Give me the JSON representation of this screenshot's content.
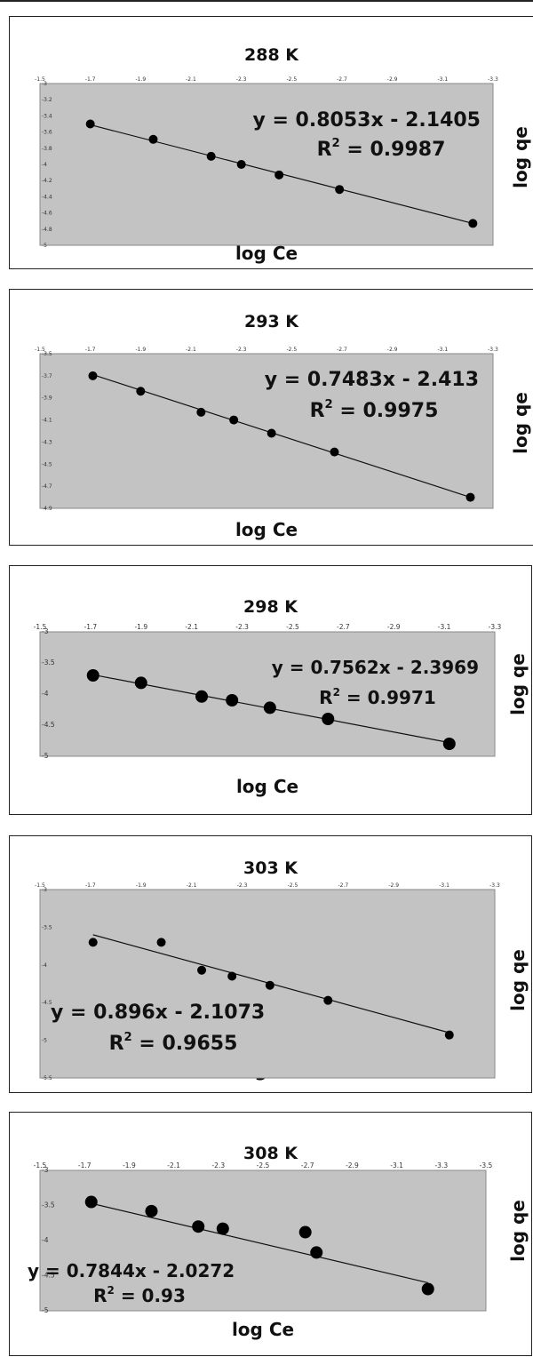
{
  "chart_data": [
    {
      "type": "scatter",
      "title": "288 K",
      "xlabel": "log Ce",
      "ylabel": "log qe",
      "xlim": [
        -1.5,
        -3.3
      ],
      "ylim": [
        -3,
        -5
      ],
      "xticks": [
        "-1.5",
        "-1.7",
        "-1.9",
        "-2.1",
        "-2.3",
        "-2.5",
        "-2.7",
        "-2.9",
        "-3.1",
        "-3.3"
      ],
      "yticks": [
        "-3",
        "-3.2",
        "-3.4",
        "-3.6",
        "-3.8",
        "-4",
        "-4.2",
        "-4.4",
        "-4.6",
        "-4.8",
        "-5"
      ],
      "points": [
        [
          -1.7,
          -3.5
        ],
        [
          -1.95,
          -3.69
        ],
        [
          -2.18,
          -3.9
        ],
        [
          -2.3,
          -4.0
        ],
        [
          -2.45,
          -4.13
        ],
        [
          -2.69,
          -4.31
        ],
        [
          -3.22,
          -4.73
        ]
      ],
      "trendline": {
        "x": [
          -1.7,
          -3.22
        ],
        "y": [
          -3.51,
          -4.73
        ]
      },
      "equation": "y = 0.8053x - 2.1405",
      "r2_prefix": "R",
      "r2_sup": "2",
      "r2_value": " = 0.9987"
    },
    {
      "type": "scatter",
      "title": "293 K",
      "xlabel": "log Ce",
      "ylabel": "log qe",
      "xlim": [
        -1.5,
        -3.3
      ],
      "ylim": [
        -3.5,
        -4.9
      ],
      "xticks": [
        "-1.5",
        "-1.7",
        "-1.9",
        "-2.1",
        "-2.3",
        "-2.5",
        "-2.7",
        "-2.9",
        "-3.1",
        "-3.3"
      ],
      "yticks": [
        "-3.5",
        "-3.7",
        "-3.9",
        "-4.1",
        "-4.3",
        "-4.5",
        "-4.7",
        "-4.9"
      ],
      "points": [
        [
          -1.71,
          -3.7
        ],
        [
          -1.9,
          -3.84
        ],
        [
          -2.14,
          -4.03
        ],
        [
          -2.27,
          -4.1
        ],
        [
          -2.42,
          -4.22
        ],
        [
          -2.67,
          -4.39
        ],
        [
          -3.21,
          -4.8
        ]
      ],
      "trendline": {
        "x": [
          -1.71,
          -3.21
        ],
        "y": [
          -3.69,
          -4.8
        ]
      },
      "equation": "y = 0.7483x - 2.413",
      "r2_prefix": "R",
      "r2_sup": "2",
      "r2_value": " = 0.9975"
    },
    {
      "type": "scatter",
      "title": "298 K",
      "xlabel": "log Ce",
      "ylabel": "log qe",
      "xlim": [
        -1.5,
        -3.3
      ],
      "ylim": [
        -3,
        -5
      ],
      "xticks": [
        "-1.5",
        "-1.7",
        "-1.9",
        "-2.1",
        "-2.3",
        "-2.5",
        "-2.7",
        "-2.9",
        "-3.1",
        "-3.3"
      ],
      "yticks": [
        "-3",
        "-3.5",
        "-4",
        "-4.5",
        "-5"
      ],
      "points": [
        [
          -1.71,
          -3.7
        ],
        [
          -1.9,
          -3.82
        ],
        [
          -2.14,
          -4.04
        ],
        [
          -2.26,
          -4.1
        ],
        [
          -2.41,
          -4.22
        ],
        [
          -2.64,
          -4.4
        ],
        [
          -3.12,
          -4.8
        ]
      ],
      "trendline": {
        "x": [
          -1.71,
          -3.12
        ],
        "y": [
          -3.69,
          -4.78
        ]
      },
      "equation": "y = 0.7562x - 2.3969",
      "r2_prefix": "R",
      "r2_sup": "2",
      "r2_value": " = 0.9971"
    },
    {
      "type": "scatter",
      "title": "303 K",
      "xlabel": "log Ce",
      "ylabel": "log qe",
      "xlim": [
        -1.5,
        -3.3
      ],
      "ylim": [
        -3,
        -5.5
      ],
      "xticks": [
        "-1.5",
        "-1.7",
        "-1.9",
        "-2.1",
        "-2.3",
        "-2.5",
        "-2.7",
        "-2.9",
        "-3.1",
        "-3.3"
      ],
      "yticks": [
        "-3",
        "-3.5",
        "-4",
        "-4.5",
        "-5",
        "-5.5"
      ],
      "points": [
        [
          -1.71,
          -3.7
        ],
        [
          -1.98,
          -3.7
        ],
        [
          -2.14,
          -4.07
        ],
        [
          -2.26,
          -4.15
        ],
        [
          -2.41,
          -4.27
        ],
        [
          -2.64,
          -4.47
        ],
        [
          -3.12,
          -4.93
        ]
      ],
      "trendline": {
        "x": [
          -1.71,
          -3.12
        ],
        "y": [
          -3.6,
          -4.9
        ]
      },
      "equation": "y = 0.896x - 2.1073",
      "r2_prefix": "R",
      "r2_sup": "2",
      "r2_value": " = 0.9655"
    },
    {
      "type": "scatter",
      "title": "308 K",
      "xlabel": "log Ce",
      "ylabel": "log qe",
      "xlim": [
        -1.5,
        -3.5
      ],
      "ylim": [
        -3,
        -5
      ],
      "xticks": [
        "-1.5",
        "-1.7",
        "-1.9",
        "-2.1",
        "-2.3",
        "-2.5",
        "-2.7",
        "-2.9",
        "-3.1",
        "-3.3",
        "-3.5"
      ],
      "yticks": [
        "-3",
        "-3.5",
        "-4",
        "-4.5",
        "-5"
      ],
      "points": [
        [
          -1.73,
          -3.45
        ],
        [
          -2.0,
          -3.58
        ],
        [
          -2.21,
          -3.8
        ],
        [
          -2.32,
          -3.83
        ],
        [
          -2.69,
          -3.88
        ],
        [
          -2.74,
          -4.17
        ],
        [
          -3.24,
          -4.69
        ]
      ],
      "trendline": {
        "x": [
          -1.73,
          -3.24
        ],
        "y": [
          -3.47,
          -4.6
        ]
      },
      "equation": "y = 0.7844x - 2.0272",
      "r2_prefix": "R",
      "r2_sup": "2",
      "r2_value": " = 0.93"
    }
  ]
}
